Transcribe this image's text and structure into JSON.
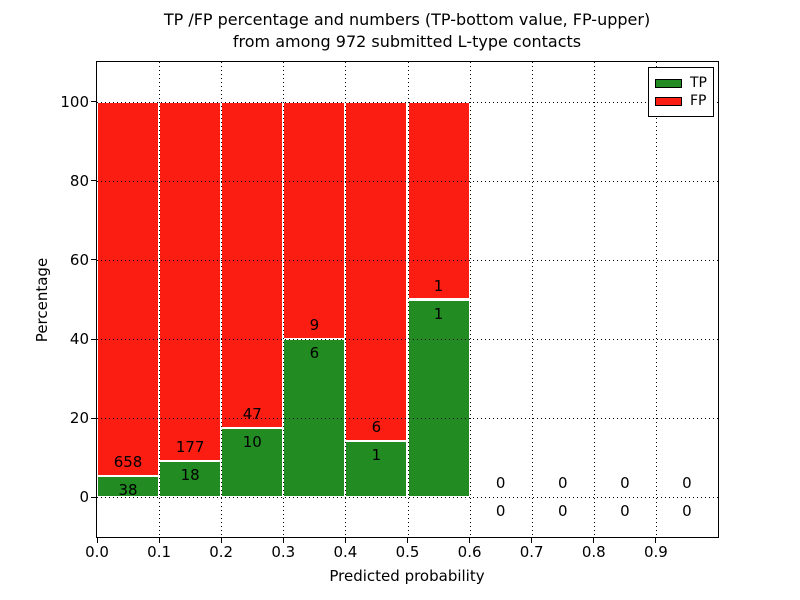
{
  "chart_data": {
    "type": "bar",
    "variant": "stacked-percentage",
    "title_line1": "TP /FP percentage and numbers (TP-bottom value, FP-upper)",
    "title_line2": "from among 972 submitted L-type contacts",
    "xlabel": "Predicted probability",
    "ylabel": "Percentage",
    "total_submitted": 972,
    "xlim": [
      0.0,
      1.0
    ],
    "ylim": [
      -10,
      110
    ],
    "x_ticks": [
      "0.0",
      "0.1",
      "0.2",
      "0.3",
      "0.4",
      "0.5",
      "0.6",
      "0.7",
      "0.8",
      "0.9"
    ],
    "y_ticks": [
      0,
      20,
      40,
      60,
      80,
      100
    ],
    "grid": true,
    "annotation_note": "TP-bottom value, FP-upper",
    "bins": [
      {
        "range": [
          0.0,
          0.1
        ],
        "tp": 38,
        "fp": 658
      },
      {
        "range": [
          0.1,
          0.2
        ],
        "tp": 18,
        "fp": 177
      },
      {
        "range": [
          0.2,
          0.3
        ],
        "tp": 10,
        "fp": 47
      },
      {
        "range": [
          0.3,
          0.4
        ],
        "tp": 6,
        "fp": 9
      },
      {
        "range": [
          0.4,
          0.5
        ],
        "tp": 1,
        "fp": 6
      },
      {
        "range": [
          0.5,
          0.6
        ],
        "tp": 1,
        "fp": 1
      },
      {
        "range": [
          0.6,
          0.7
        ],
        "tp": 0,
        "fp": 0
      },
      {
        "range": [
          0.7,
          0.8
        ],
        "tp": 0,
        "fp": 0
      },
      {
        "range": [
          0.8,
          0.9
        ],
        "tp": 0,
        "fp": 0
      },
      {
        "range": [
          0.9,
          1.0
        ],
        "tp": 0,
        "fp": 0
      }
    ],
    "legend": {
      "position": "upper-right",
      "items": [
        {
          "label": "TP",
          "color": "#228b22"
        },
        {
          "label": "FP",
          "color": "#fc1d12"
        }
      ]
    },
    "colors": {
      "tp": "#228b22",
      "fp": "#fc1d12",
      "grid": "#000000",
      "text": "#000000",
      "background": "#ffffff"
    }
  }
}
